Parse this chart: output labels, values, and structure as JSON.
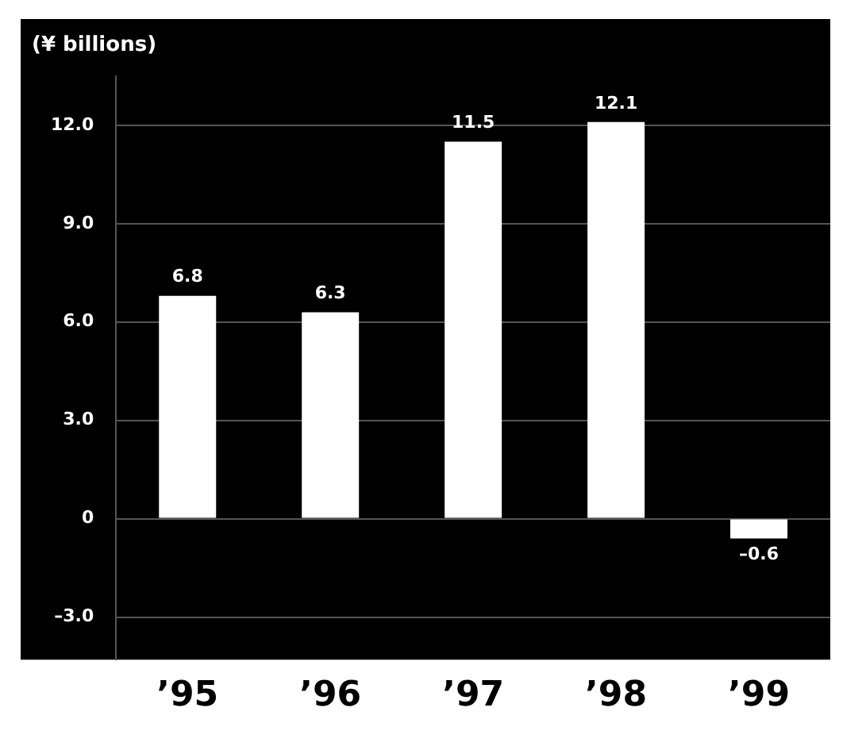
{
  "chart_data": {
    "type": "bar",
    "ylabel": "(¥ billions)",
    "categories": [
      "’95",
      "’96",
      "’97",
      "’98",
      "’99"
    ],
    "values": [
      6.8,
      6.3,
      11.5,
      12.1,
      -0.6
    ],
    "value_labels": [
      "6.8",
      "6.3",
      "11.5",
      "12.1",
      "–0.6"
    ],
    "color": "#ffffff",
    "ylim": [
      -4.3,
      13.5
    ],
    "yticks": [
      {
        "value": -3,
        "label": "–3.0"
      },
      0,
      {
        "value": 3,
        "label": "3.0"
      },
      {
        "value": 6,
        "label": "6.0"
      },
      {
        "value": 9,
        "label": "9.0"
      },
      {
        "value": 12,
        "label": "12.0"
      }
    ],
    "grid": "y",
    "legend": false
  }
}
